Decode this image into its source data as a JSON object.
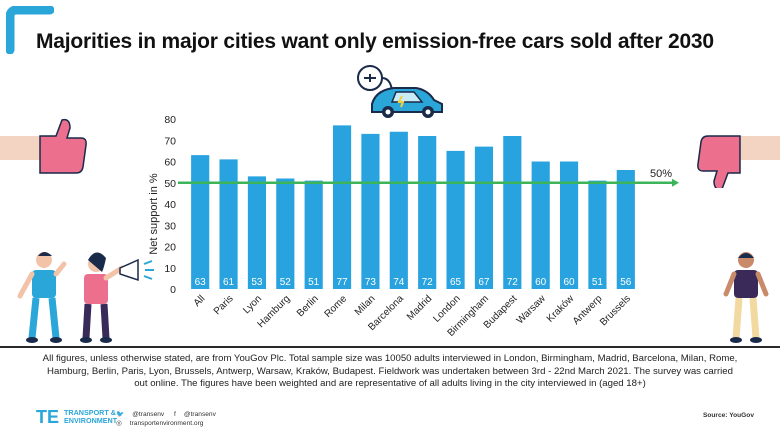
{
  "title": "Majorities in major cities want only emission-free cars sold after 2030",
  "chart_data": {
    "type": "bar",
    "categories": [
      "All",
      "Paris",
      "Lyon",
      "Hamburg",
      "Berlin",
      "Rome",
      "Milan",
      "Barcelona",
      "Madrid",
      "London",
      "Birmingham",
      "Budapest",
      "Warsaw",
      "Kraków",
      "Antwerp",
      "Brussels"
    ],
    "values": [
      63,
      61,
      53,
      52,
      51,
      77,
      73,
      74,
      72,
      65,
      67,
      72,
      60,
      60,
      51,
      56
    ],
    "ylabel": "Net support in %",
    "xlabel": "",
    "ylim": [
      0,
      80
    ],
    "yticks": [
      0,
      10,
      20,
      30,
      40,
      50,
      60,
      70,
      80
    ],
    "reference_line": {
      "value": 50,
      "label": "50%"
    },
    "colors": {
      "bar": "#29a3df",
      "reference": "#3cb55a",
      "bar_label": "#ffffff"
    }
  },
  "footnote": "All figures, unless otherwise stated, are from YouGov Plc. Total sample size was 10050 adults interviewed in London, Birmingham, Madrid, Barcelona, Milan, Rome, Hamburg, Berlin, Paris, Lyon, Brussels, Antwerp, Warsaw, Kraków, Budapest. Fieldwork was undertaken between 3rd - 22nd March 2021. The survey was carried out online. The figures have been weighted and are representative of all adults living in the city interviewed in (aged 18+)",
  "footer": {
    "logo_line1": "TRANSPORT &",
    "logo_line2": "ENVIRONMENT",
    "twitter": "@transenv",
    "facebook": "@transenv",
    "website": "transportenvironment.org",
    "source": "Source: YouGov"
  }
}
